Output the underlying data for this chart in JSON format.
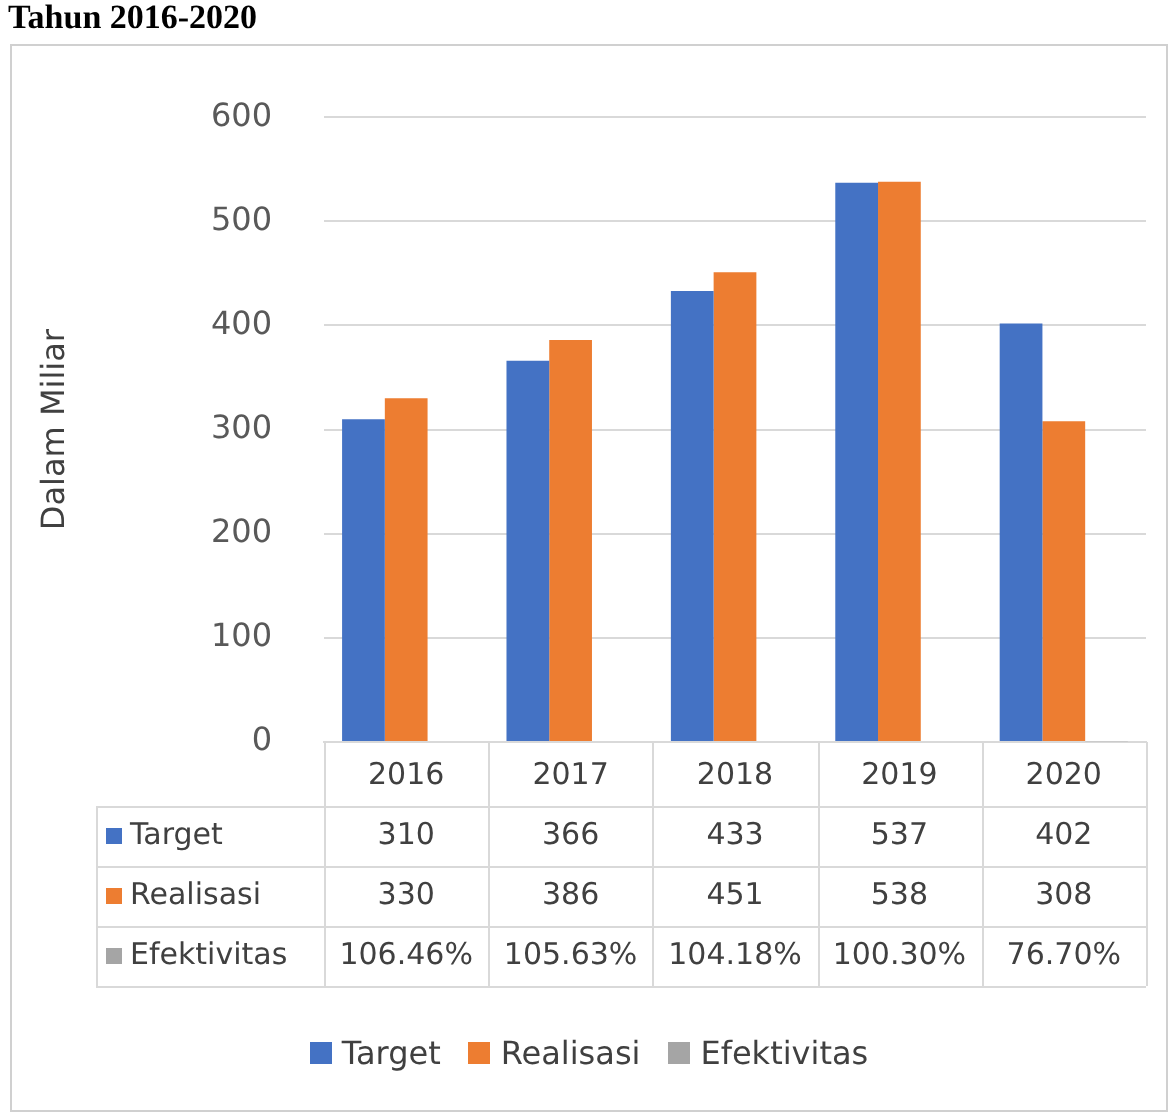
{
  "chart_data": {
    "type": "bar",
    "title": "Tahun 2016-2020",
    "ylabel": "Dalam Miliar",
    "categories": [
      "2016",
      "2017",
      "2018",
      "2019",
      "2020"
    ],
    "series": [
      {
        "name": "Target",
        "color": "#4472c4",
        "values": [
          310,
          366,
          433,
          537,
          402
        ],
        "value_labels": [
          "310",
          "366",
          "433",
          "537",
          "402"
        ]
      },
      {
        "name": "Realisasi",
        "color": "#ed7d31",
        "values": [
          330,
          386,
          451,
          538,
          308
        ],
        "value_labels": [
          "330",
          "386",
          "451",
          "538",
          "308"
        ]
      },
      {
        "name": "Efektivitas",
        "color": "#a5a5a5",
        "values": [
          1.0646,
          1.0563,
          1.0418,
          1.003,
          0.767
        ],
        "value_labels": [
          "106.46%",
          "105.63%",
          "104.18%",
          "100.30%",
          "76.70%"
        ]
      }
    ],
    "ylim": [
      0,
      600
    ],
    "yticks": [
      0,
      100,
      200,
      300,
      400,
      500,
      600
    ],
    "grid": "y",
    "legend": "bottom"
  }
}
